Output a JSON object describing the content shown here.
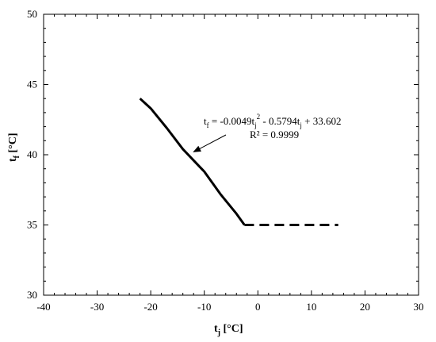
{
  "chart_data": {
    "type": "line",
    "xlabel": {
      "main": "t",
      "sub": "j",
      "unit": " [°C]"
    },
    "ylabel": {
      "main": "t",
      "sub": "f",
      "unit": " [°C]"
    },
    "xlim": [
      -40,
      30
    ],
    "ylim": [
      30,
      50
    ],
    "x_ticks": [
      -40,
      -30,
      -20,
      -10,
      0,
      10,
      20,
      30
    ],
    "y_ticks": [
      30,
      35,
      40,
      45,
      50
    ],
    "x_tick_labels": [
      "-40",
      "-30",
      "-20",
      "-10",
      "0",
      "10",
      "20",
      "30"
    ],
    "y_tick_labels": [
      "30",
      "35",
      "40",
      "45",
      "50"
    ],
    "grid": false,
    "series": [
      {
        "style": "solid",
        "color": "#000000",
        "x": [
          -22,
          -20,
          -17,
          -14,
          -10,
          -7,
          -4,
          -2.5
        ],
        "y": [
          44,
          43.3,
          41.9,
          40.4,
          38.8,
          37.2,
          35.8,
          35
        ]
      },
      {
        "style": "dashed",
        "color": "#000000",
        "x": [
          -2.5,
          15
        ],
        "y": [
          35,
          35
        ]
      }
    ],
    "annotation": {
      "line1": {
        "t": "t",
        "t_sub": "f",
        "a": " = -0.0049t",
        "a_sub": "j",
        "a_sup": "2",
        "b": " - 0.5794t",
        "b_sub": "j",
        "c": " + 33.602"
      },
      "line2": "R² = 0.9999",
      "arrow_target": {
        "x": -12,
        "y": 40.2
      }
    }
  }
}
